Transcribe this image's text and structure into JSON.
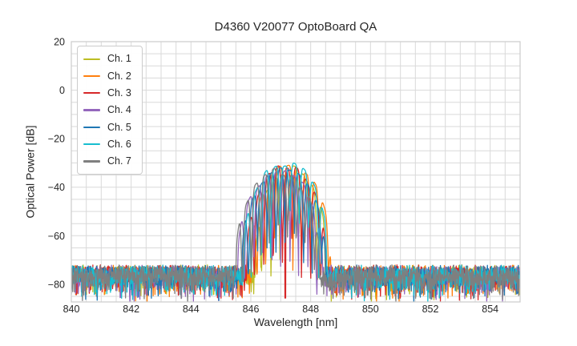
{
  "chart_data": {
    "type": "line",
    "title": "D4360 V20077 OptoBoard QA",
    "xlabel": "Wavelength [nm]",
    "ylabel": "Optical Power [dB]",
    "xlim": [
      840,
      855
    ],
    "ylim": [
      -87.3,
      20
    ],
    "x_major_ticks": [
      840,
      842,
      844,
      846,
      848,
      850,
      852,
      854
    ],
    "y_major_ticks": [
      20,
      0,
      -20,
      -40,
      -60,
      -80
    ],
    "x_minor_step": 0.5,
    "y_minor_step": 5,
    "grid": true,
    "legend_position": "upper left",
    "noise_floor_db": -78,
    "noise_top_db": -72,
    "signal_band_nm": [
      845.3,
      848.7
    ],
    "peak_power_db": -28.5,
    "colors": {
      "background": "#ffffff",
      "grid": "#d9d9d9",
      "spine": "#cccccc",
      "text": "#262626"
    },
    "channels": [
      {
        "label": "Ch. 1",
        "color": "#bcbd22",
        "seed": 101,
        "band": [
          846.15,
          848.55
        ],
        "peak_db": -31.0,
        "mode_spacing": 0.31,
        "mode_offset": 846.05
      },
      {
        "label": "Ch. 2",
        "color": "#ff7f0e",
        "seed": 202,
        "band": [
          846.0,
          848.68
        ],
        "peak_db": -29.5,
        "mode_spacing": 0.3,
        "mode_offset": 845.9
      },
      {
        "label": "Ch. 3",
        "color": "#d62728",
        "seed": 303,
        "band": [
          845.85,
          848.5
        ],
        "peak_db": -30.5,
        "mode_spacing": 0.315,
        "mode_offset": 845.8,
        "notch_nm": 847.15
      },
      {
        "label": "Ch. 4",
        "color": "#9467bd",
        "seed": 404,
        "band": [
          845.55,
          848.4
        ],
        "peak_db": -32.5,
        "mode_spacing": 0.3,
        "mode_offset": 845.5
      },
      {
        "label": "Ch. 5",
        "color": "#1f77b4",
        "seed": 505,
        "band": [
          845.7,
          848.5
        ],
        "peak_db": -31.0,
        "mode_spacing": 0.305,
        "mode_offset": 845.62
      },
      {
        "label": "Ch. 6",
        "color": "#17becf",
        "seed": 606,
        "band": [
          845.75,
          848.62
        ],
        "peak_db": -28.5,
        "mode_spacing": 0.32,
        "mode_offset": 845.7
      },
      {
        "label": "Ch. 7",
        "color": "#7f7f7f",
        "seed": 707,
        "band": [
          845.5,
          848.3
        ],
        "peak_db": -32.0,
        "mode_spacing": 0.3,
        "mode_offset": 845.42
      }
    ],
    "gen": {
      "step": 0.012,
      "noise_base": -78.5,
      "noise_jitter": 6.5,
      "noise_tail": 11,
      "env_pow": 0.3,
      "skirt_db": -80,
      "dip_min": 16,
      "dip_var": 30,
      "dip_pow": 2,
      "peak_jitter": 3
    }
  }
}
